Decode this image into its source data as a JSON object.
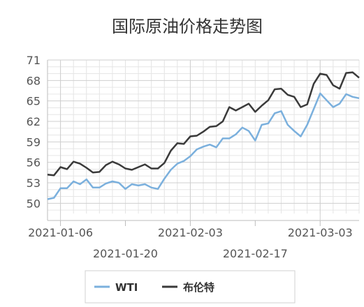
{
  "chart_data": {
    "type": "line",
    "title": "国际原油价格走势图",
    "xlabel": "",
    "ylabel": "",
    "ylim": [
      48.5,
      71
    ],
    "yticks": [
      50,
      53,
      56,
      59,
      62,
      65,
      68,
      71
    ],
    "xtick_labels_upper": [
      "2021-01-06",
      "2021-02-03",
      "2021-03-03"
    ],
    "xtick_labels_lower": [
      "2021-01-20",
      "2021-02-17"
    ],
    "grid": true,
    "legend_position": "bottom",
    "colors": {
      "WTI": "#7bb0dd",
      "布伦特": "#3a3a3a"
    },
    "series": [
      {
        "name": "WTI",
        "values": [
          50.6,
          50.8,
          52.2,
          52.2,
          53.2,
          52.8,
          53.5,
          52.3,
          52.3,
          52.9,
          53.2,
          53.0,
          52.1,
          52.8,
          52.6,
          52.8,
          52.3,
          52.1,
          53.6,
          54.9,
          55.8,
          56.2,
          56.9,
          57.9,
          58.3,
          58.6,
          58.2,
          59.5,
          59.5,
          60.1,
          61.1,
          60.6,
          59.2,
          61.5,
          61.7,
          63.2,
          63.5,
          61.5,
          60.6,
          59.8,
          61.5,
          63.8,
          66.1,
          65.1,
          64.1,
          64.6,
          66.0,
          65.6,
          65.4
        ],
        "x": [
          "2021-01-04",
          "2021-01-05",
          "2021-01-06",
          "2021-01-07",
          "2021-01-08",
          "2021-01-11",
          "2021-01-12",
          "2021-01-13",
          "2021-01-14",
          "2021-01-15",
          "2021-01-18",
          "2021-01-19",
          "2021-01-20",
          "2021-01-21",
          "2021-01-22",
          "2021-01-25",
          "2021-01-26",
          "2021-01-27",
          "2021-01-28",
          "2021-01-29",
          "2021-02-01",
          "2021-02-02",
          "2021-02-03",
          "2021-02-04",
          "2021-02-05",
          "2021-02-08",
          "2021-02-09",
          "2021-02-10",
          "2021-02-11",
          "2021-02-12",
          "2021-02-15",
          "2021-02-16",
          "2021-02-17",
          "2021-02-18",
          "2021-02-19",
          "2021-02-22",
          "2021-02-23",
          "2021-02-24",
          "2021-02-25",
          "2021-02-26",
          "2021-03-01",
          "2021-03-02",
          "2021-03-03",
          "2021-03-04",
          "2021-03-05",
          "2021-03-08",
          "2021-03-09",
          "2021-03-10",
          "2021-03-11"
        ]
      },
      {
        "name": "布伦特",
        "values": [
          54.2,
          54.1,
          55.3,
          55.0,
          56.1,
          55.8,
          55.2,
          54.5,
          54.6,
          55.6,
          56.1,
          55.7,
          55.1,
          54.9,
          55.3,
          55.7,
          55.1,
          55.1,
          55.9,
          57.7,
          58.8,
          58.7,
          59.8,
          59.9,
          60.5,
          61.2,
          61.3,
          62.0,
          64.1,
          63.6,
          64.1,
          64.6,
          63.4,
          64.3,
          65.1,
          66.7,
          66.8,
          65.9,
          65.6,
          64.1,
          64.5,
          67.5,
          69.0,
          68.8,
          67.3,
          66.8,
          69.1,
          69.2,
          68.4
        ],
        "x": [
          "2021-01-04",
          "2021-01-05",
          "2021-01-06",
          "2021-01-07",
          "2021-01-08",
          "2021-01-11",
          "2021-01-12",
          "2021-01-13",
          "2021-01-14",
          "2021-01-15",
          "2021-01-18",
          "2021-01-19",
          "2021-01-20",
          "2021-01-21",
          "2021-01-22",
          "2021-01-25",
          "2021-01-26",
          "2021-01-27",
          "2021-01-28",
          "2021-01-29",
          "2021-02-01",
          "2021-02-02",
          "2021-02-03",
          "2021-02-04",
          "2021-02-05",
          "2021-02-08",
          "2021-02-09",
          "2021-02-10",
          "2021-02-11",
          "2021-02-12",
          "2021-02-15",
          "2021-02-16",
          "2021-02-17",
          "2021-02-18",
          "2021-02-19",
          "2021-02-22",
          "2021-02-23",
          "2021-02-24",
          "2021-02-25",
          "2021-02-26",
          "2021-03-01",
          "2021-03-02",
          "2021-03-03",
          "2021-03-04",
          "2021-03-05",
          "2021-03-08",
          "2021-03-09",
          "2021-03-10",
          "2021-03-11"
        ]
      }
    ],
    "tick_indices": {
      "2021-01-06": 2,
      "2021-01-20": 12,
      "2021-02-03": 22,
      "2021-02-17": 32,
      "2021-03-03": 42
    }
  }
}
